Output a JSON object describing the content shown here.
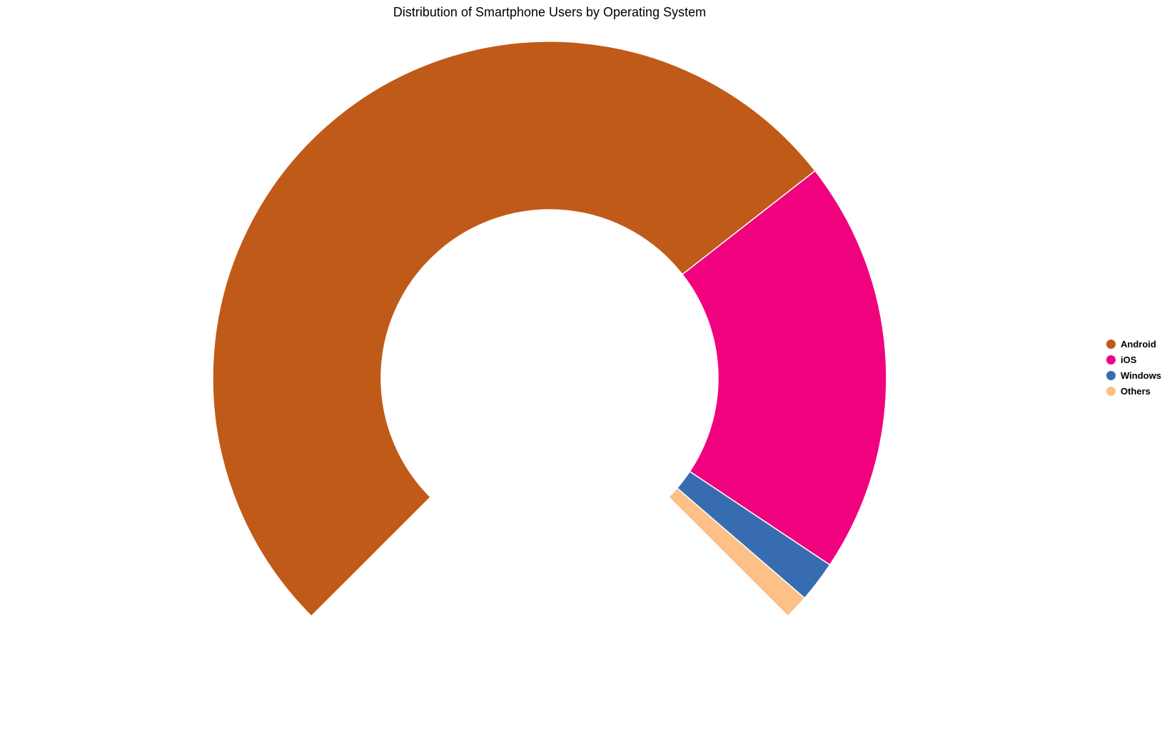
{
  "chart_data": {
    "type": "pie",
    "variant": "donut",
    "title": "Distribution of Smartphone Users by Operating System",
    "categories": [
      "Android",
      "iOS",
      "Windows",
      "Others"
    ],
    "values": [
      71.2,
      27.3,
      2.7,
      1.6
    ],
    "colors": [
      "#c05a18",
      "#f0027f",
      "#386cb0",
      "#fdc086"
    ],
    "arc_span_degrees": 270,
    "start_angle_degrees": 225,
    "legend_position": "right"
  }
}
